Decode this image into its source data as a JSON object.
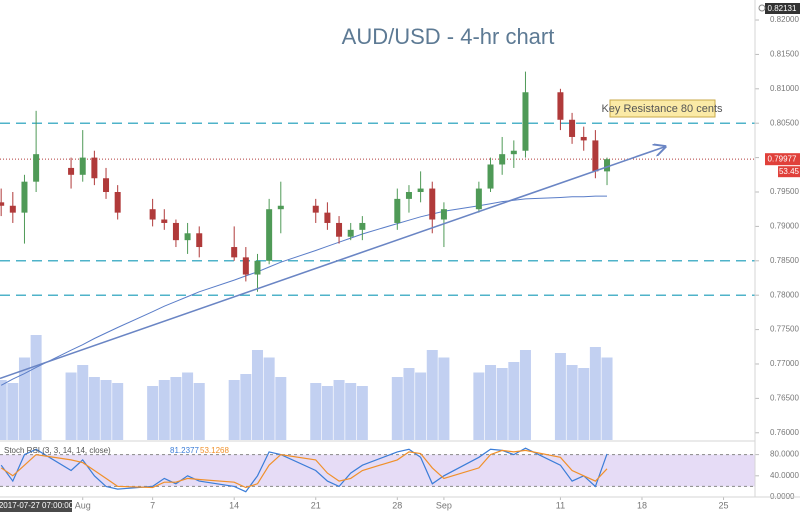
{
  "chart_data": {
    "type": "candlestick",
    "title": "AUD/USD - 4-hr chart",
    "annotation": "Key Resistance 80 cents",
    "cursor_time": "2017-07-27 07:00:00",
    "top_price": 0.82131,
    "indicator_value": 53.45,
    "up_color": "#4f9a57",
    "down_color": "#b03a3a",
    "x": [
      -7,
      -6,
      -5,
      -4,
      -1,
      0,
      1,
      2,
      3,
      6,
      7,
      8,
      9,
      10,
      13,
      14,
      15,
      16,
      17,
      20,
      21,
      22,
      23,
      24,
      27,
      28,
      29,
      30,
      31,
      34,
      35,
      36,
      37,
      38,
      41,
      42,
      43,
      44,
      45
    ],
    "open": [
      0.7935,
      0.793,
      0.792,
      0.7965,
      0.7985,
      0.7975,
      0.8,
      0.797,
      0.795,
      0.7925,
      0.791,
      0.7905,
      0.788,
      0.789,
      0.787,
      0.7855,
      0.783,
      0.785,
      0.7925,
      0.793,
      0.792,
      0.7905,
      0.7885,
      0.7895,
      0.7905,
      0.794,
      0.795,
      0.7955,
      0.791,
      0.7925,
      0.7955,
      0.799,
      0.8005,
      0.801,
      0.8095,
      0.8055,
      0.803,
      0.8025,
      0.798
    ],
    "high": [
      0.7955,
      0.795,
      0.7975,
      0.8068,
      0.8,
      0.804,
      0.801,
      0.7985,
      0.796,
      0.794,
      0.7925,
      0.791,
      0.7905,
      0.79,
      0.79,
      0.787,
      0.786,
      0.794,
      0.7965,
      0.794,
      0.7935,
      0.7915,
      0.7905,
      0.7915,
      0.7955,
      0.796,
      0.798,
      0.7965,
      0.7935,
      0.7965,
      0.8,
      0.803,
      0.8025,
      0.8125,
      0.81,
      0.8065,
      0.8045,
      0.804,
      0.8
    ],
    "low": [
      0.7915,
      0.7905,
      0.7875,
      0.795,
      0.7955,
      0.7965,
      0.796,
      0.794,
      0.791,
      0.79,
      0.7895,
      0.787,
      0.786,
      0.7855,
      0.785,
      0.782,
      0.7805,
      0.7845,
      0.789,
      0.7905,
      0.7895,
      0.7875,
      0.788,
      0.788,
      0.7895,
      0.792,
      0.7935,
      0.789,
      0.787,
      0.792,
      0.795,
      0.7975,
      0.7985,
      0.8,
      0.804,
      0.802,
      0.801,
      0.797,
      0.796
    ],
    "close": [
      0.793,
      0.792,
      0.7965,
      0.8005,
      0.7975,
      0.8,
      0.797,
      0.795,
      0.792,
      0.791,
      0.7905,
      0.788,
      0.789,
      0.787,
      0.7855,
      0.783,
      0.785,
      0.7925,
      0.793,
      0.792,
      0.7905,
      0.7885,
      0.7895,
      0.7905,
      0.794,
      0.795,
      0.7955,
      0.791,
      0.7925,
      0.7955,
      0.799,
      0.8005,
      0.801,
      0.8095,
      0.8055,
      0.803,
      0.8025,
      0.798,
      0.79977
    ],
    "last_price_color": "#e0403a",
    "volume": {
      "color": "#8fa9e6",
      "values": [
        40,
        38,
        55,
        70,
        45,
        50,
        42,
        40,
        38,
        36,
        40,
        42,
        45,
        38,
        40,
        44,
        60,
        55,
        42,
        38,
        36,
        40,
        38,
        36,
        42,
        48,
        45,
        60,
        55,
        45,
        50,
        48,
        52,
        60,
        58,
        50,
        48,
        62,
        55
      ]
    },
    "ma": {
      "color": "#5a7dc8",
      "values": [
        0.7669,
        0.7678,
        0.7686,
        0.7695,
        0.772,
        0.7728,
        0.7737,
        0.7745,
        0.7753,
        0.7776,
        0.7784,
        0.7791,
        0.7798,
        0.7805,
        0.7822,
        0.7828,
        0.7834,
        0.7841,
        0.7848,
        0.7865,
        0.7871,
        0.7877,
        0.7883,
        0.7889,
        0.7904,
        0.7909,
        0.7914,
        0.7918,
        0.7922,
        0.793,
        0.7933,
        0.7936,
        0.7938,
        0.794,
        0.7942,
        0.7943,
        0.7943,
        0.7944,
        0.7944
      ]
    },
    "trendline": {
      "color": "#6a85c4",
      "x": [
        -7.1,
        50
      ],
      "values": [
        0.7679,
        0.8016
      ]
    },
    "levels": {
      "color": "#4fb3c9",
      "values": [
        0.805,
        0.785,
        0.78
      ]
    },
    "xlim": [
      -7.1,
      57.7
    ],
    "ylim": [
      0.75895,
      0.82291
    ],
    "xticks": [
      {
        "value": 0,
        "label": "Aug"
      },
      {
        "value": 6,
        "label": "7"
      },
      {
        "value": 13,
        "label": "14"
      },
      {
        "value": 20,
        "label": "21"
      },
      {
        "value": 27,
        "label": "28"
      },
      {
        "value": 31,
        "label": "Sep"
      },
      {
        "value": 41,
        "label": "11"
      },
      {
        "value": 48,
        "label": "18"
      },
      {
        "value": 55,
        "label": "25"
      }
    ],
    "yticks": [
      {
        "value": 0.82,
        "label": "0.82000"
      },
      {
        "value": 0.815,
        "label": "0.81500"
      },
      {
        "value": 0.81,
        "label": "0.81000"
      },
      {
        "value": 0.805,
        "label": "0.80500"
      },
      {
        "value": 0.8,
        "label": "0.80000"
      },
      {
        "value": 0.795,
        "label": "0.79500"
      },
      {
        "value": 0.79,
        "label": "0.79000"
      },
      {
        "value": 0.785,
        "label": "0.78500"
      },
      {
        "value": 0.78,
        "label": "0.78000"
      },
      {
        "value": 0.775,
        "label": "0.77500"
      },
      {
        "value": 0.77,
        "label": "0.77000"
      },
      {
        "value": 0.765,
        "label": "0.76500"
      },
      {
        "value": 0.76,
        "label": "0.76000"
      }
    ],
    "stoch": {
      "label": "Stoch RSI (3, 3, 14, 14, close)",
      "ylim": [
        0,
        100
      ],
      "yticks": [
        {
          "value": 80,
          "label": "80.0000"
        },
        {
          "value": 40,
          "label": "40.0000"
        },
        {
          "value": 0,
          "label": "0.0000"
        }
      ],
      "bands": [
        20,
        80
      ],
      "band_color": "#e6dcf6",
      "series": [
        {
          "color": "#3b7dd8",
          "values": [
            60,
            30,
            80,
            90,
            50,
            70,
            40,
            20,
            15,
            20,
            35,
            25,
            40,
            30,
            20,
            10,
            40,
            85,
            80,
            50,
            30,
            20,
            45,
            60,
            85,
            90,
            75,
            25,
            40,
            75,
            90,
            88,
            80,
            92,
            60,
            30,
            40,
            20,
            81.2377
          ]
        },
        {
          "color": "#f0902a",
          "values": [
            55,
            40,
            60,
            80,
            70,
            65,
            50,
            35,
            20,
            18,
            28,
            28,
            35,
            33,
            28,
            18,
            25,
            60,
            80,
            70,
            45,
            30,
            35,
            50,
            70,
            85,
            82,
            55,
            35,
            55,
            80,
            88,
            85,
            88,
            75,
            50,
            40,
            30,
            53.1268
          ]
        }
      ]
    }
  }
}
